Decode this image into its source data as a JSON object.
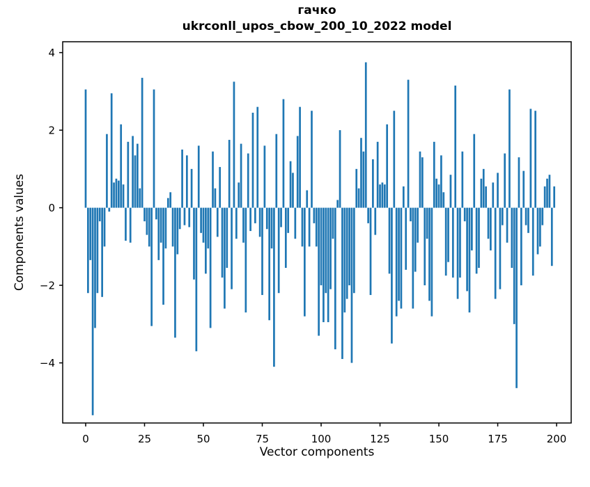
{
  "figure": {
    "background": "#ffffff",
    "title_line1": "гачко",
    "title_line2": "ukrconll_upos_cbow_200_10_2022 model"
  },
  "chart_data": {
    "type": "bar",
    "title": "гачко",
    "subtitle": "ukrconll_upos_cbow_200_10_2022 model",
    "xlabel": "Vector components",
    "ylabel": "Components values",
    "legend": "none",
    "grid": false,
    "bar_color": "#1f77b4",
    "axis_color": "#000000",
    "n_components": 200,
    "x_ticks": [
      0,
      25,
      50,
      75,
      100,
      125,
      150,
      175,
      200
    ],
    "y_ticks": [
      4,
      2,
      0,
      -2,
      -4
    ],
    "xlim": [
      -9.76,
      206.2
    ],
    "ylim": [
      -5.55,
      4.28
    ],
    "values": [
      3.05,
      -2.2,
      -1.35,
      -5.35,
      -3.1,
      -2.2,
      -0.35,
      -2.3,
      -1.0,
      1.9,
      -0.1,
      2.95,
      0.65,
      0.75,
      0.7,
      2.15,
      0.6,
      -0.85,
      1.7,
      -0.9,
      1.85,
      1.35,
      1.65,
      0.5,
      3.35,
      -0.35,
      -0.7,
      -1.0,
      -3.05,
      3.05,
      -0.3,
      -1.35,
      -0.9,
      -2.5,
      -1.05,
      0.25,
      0.4,
      -1.0,
      -3.35,
      -1.2,
      -0.55,
      1.5,
      -0.45,
      1.35,
      -0.5,
      1.0,
      -1.85,
      -3.7,
      1.6,
      -0.65,
      -0.9,
      -1.7,
      -1.05,
      -3.1,
      1.45,
      0.5,
      -0.75,
      1.05,
      -1.8,
      -2.6,
      -1.55,
      1.75,
      -2.1,
      3.25,
      -0.8,
      0.65,
      1.65,
      -0.9,
      -2.7,
      1.4,
      -0.6,
      2.45,
      -0.4,
      2.6,
      -0.75,
      -2.25,
      1.6,
      -0.55,
      -2.9,
      -1.05,
      -4.1,
      1.9,
      -2.2,
      -0.5,
      2.8,
      -1.55,
      -0.65,
      1.2,
      0.9,
      -0.8,
      1.85,
      2.6,
      -1.0,
      -2.8,
      0.45,
      -1.0,
      2.5,
      -0.4,
      -1.0,
      -3.3,
      -2.0,
      -2.95,
      -2.2,
      -2.95,
      -2.1,
      -0.8,
      -3.65,
      0.2,
      2.0,
      -3.9,
      -2.7,
      -2.35,
      -2.0,
      -4.0,
      -2.2,
      1.0,
      0.5,
      1.8,
      1.45,
      3.75,
      -0.4,
      -2.25,
      1.25,
      -0.7,
      1.7,
      0.6,
      0.65,
      0.6,
      2.15,
      -1.7,
      -3.5,
      2.5,
      -2.8,
      -2.4,
      -2.6,
      0.55,
      -1.6,
      3.3,
      -0.35,
      -2.6,
      -1.65,
      -0.9,
      1.45,
      1.3,
      -2.0,
      -0.8,
      -2.4,
      -2.8,
      1.7,
      0.75,
      0.6,
      1.35,
      0.4,
      -1.75,
      -1.4,
      0.85,
      -1.8,
      3.15,
      -2.35,
      -1.8,
      1.45,
      -0.35,
      -2.15,
      -2.7,
      -1.1,
      1.9,
      -1.7,
      -1.55,
      0.75,
      1.0,
      0.55,
      -0.8,
      -1.1,
      0.65,
      -2.35,
      0.9,
      -2.1,
      -0.45,
      1.4,
      -0.9,
      3.05,
      -1.55,
      -3.0,
      -4.65,
      1.3,
      -2.0,
      0.95,
      -0.45,
      -0.65,
      2.55,
      -1.75,
      2.5,
      -1.2,
      -1.0,
      -0.45,
      0.55,
      0.75,
      0.85,
      -1.5,
      0.55
    ]
  }
}
